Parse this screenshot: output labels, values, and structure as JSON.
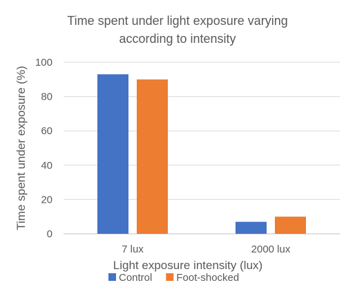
{
  "chart_data": {
    "type": "bar",
    "title_lines": [
      "Time spent under light exposure varying",
      "according to intensity"
    ],
    "xlabel": "Light exposure intensity (lux)",
    "ylabel": "Time spent under exposure (%)",
    "categories": [
      "7 lux",
      "2000 lux"
    ],
    "yticks": [
      0,
      20,
      40,
      60,
      80,
      100
    ],
    "ylim": [
      0,
      100
    ],
    "grid": true,
    "legend_position": "bottom",
    "series": [
      {
        "name": "Control",
        "values": [
          93,
          7
        ],
        "color": "#4472C4"
      },
      {
        "name": "Foot-shocked",
        "values": [
          90,
          10
        ],
        "color": "#ED7D31"
      }
    ]
  }
}
